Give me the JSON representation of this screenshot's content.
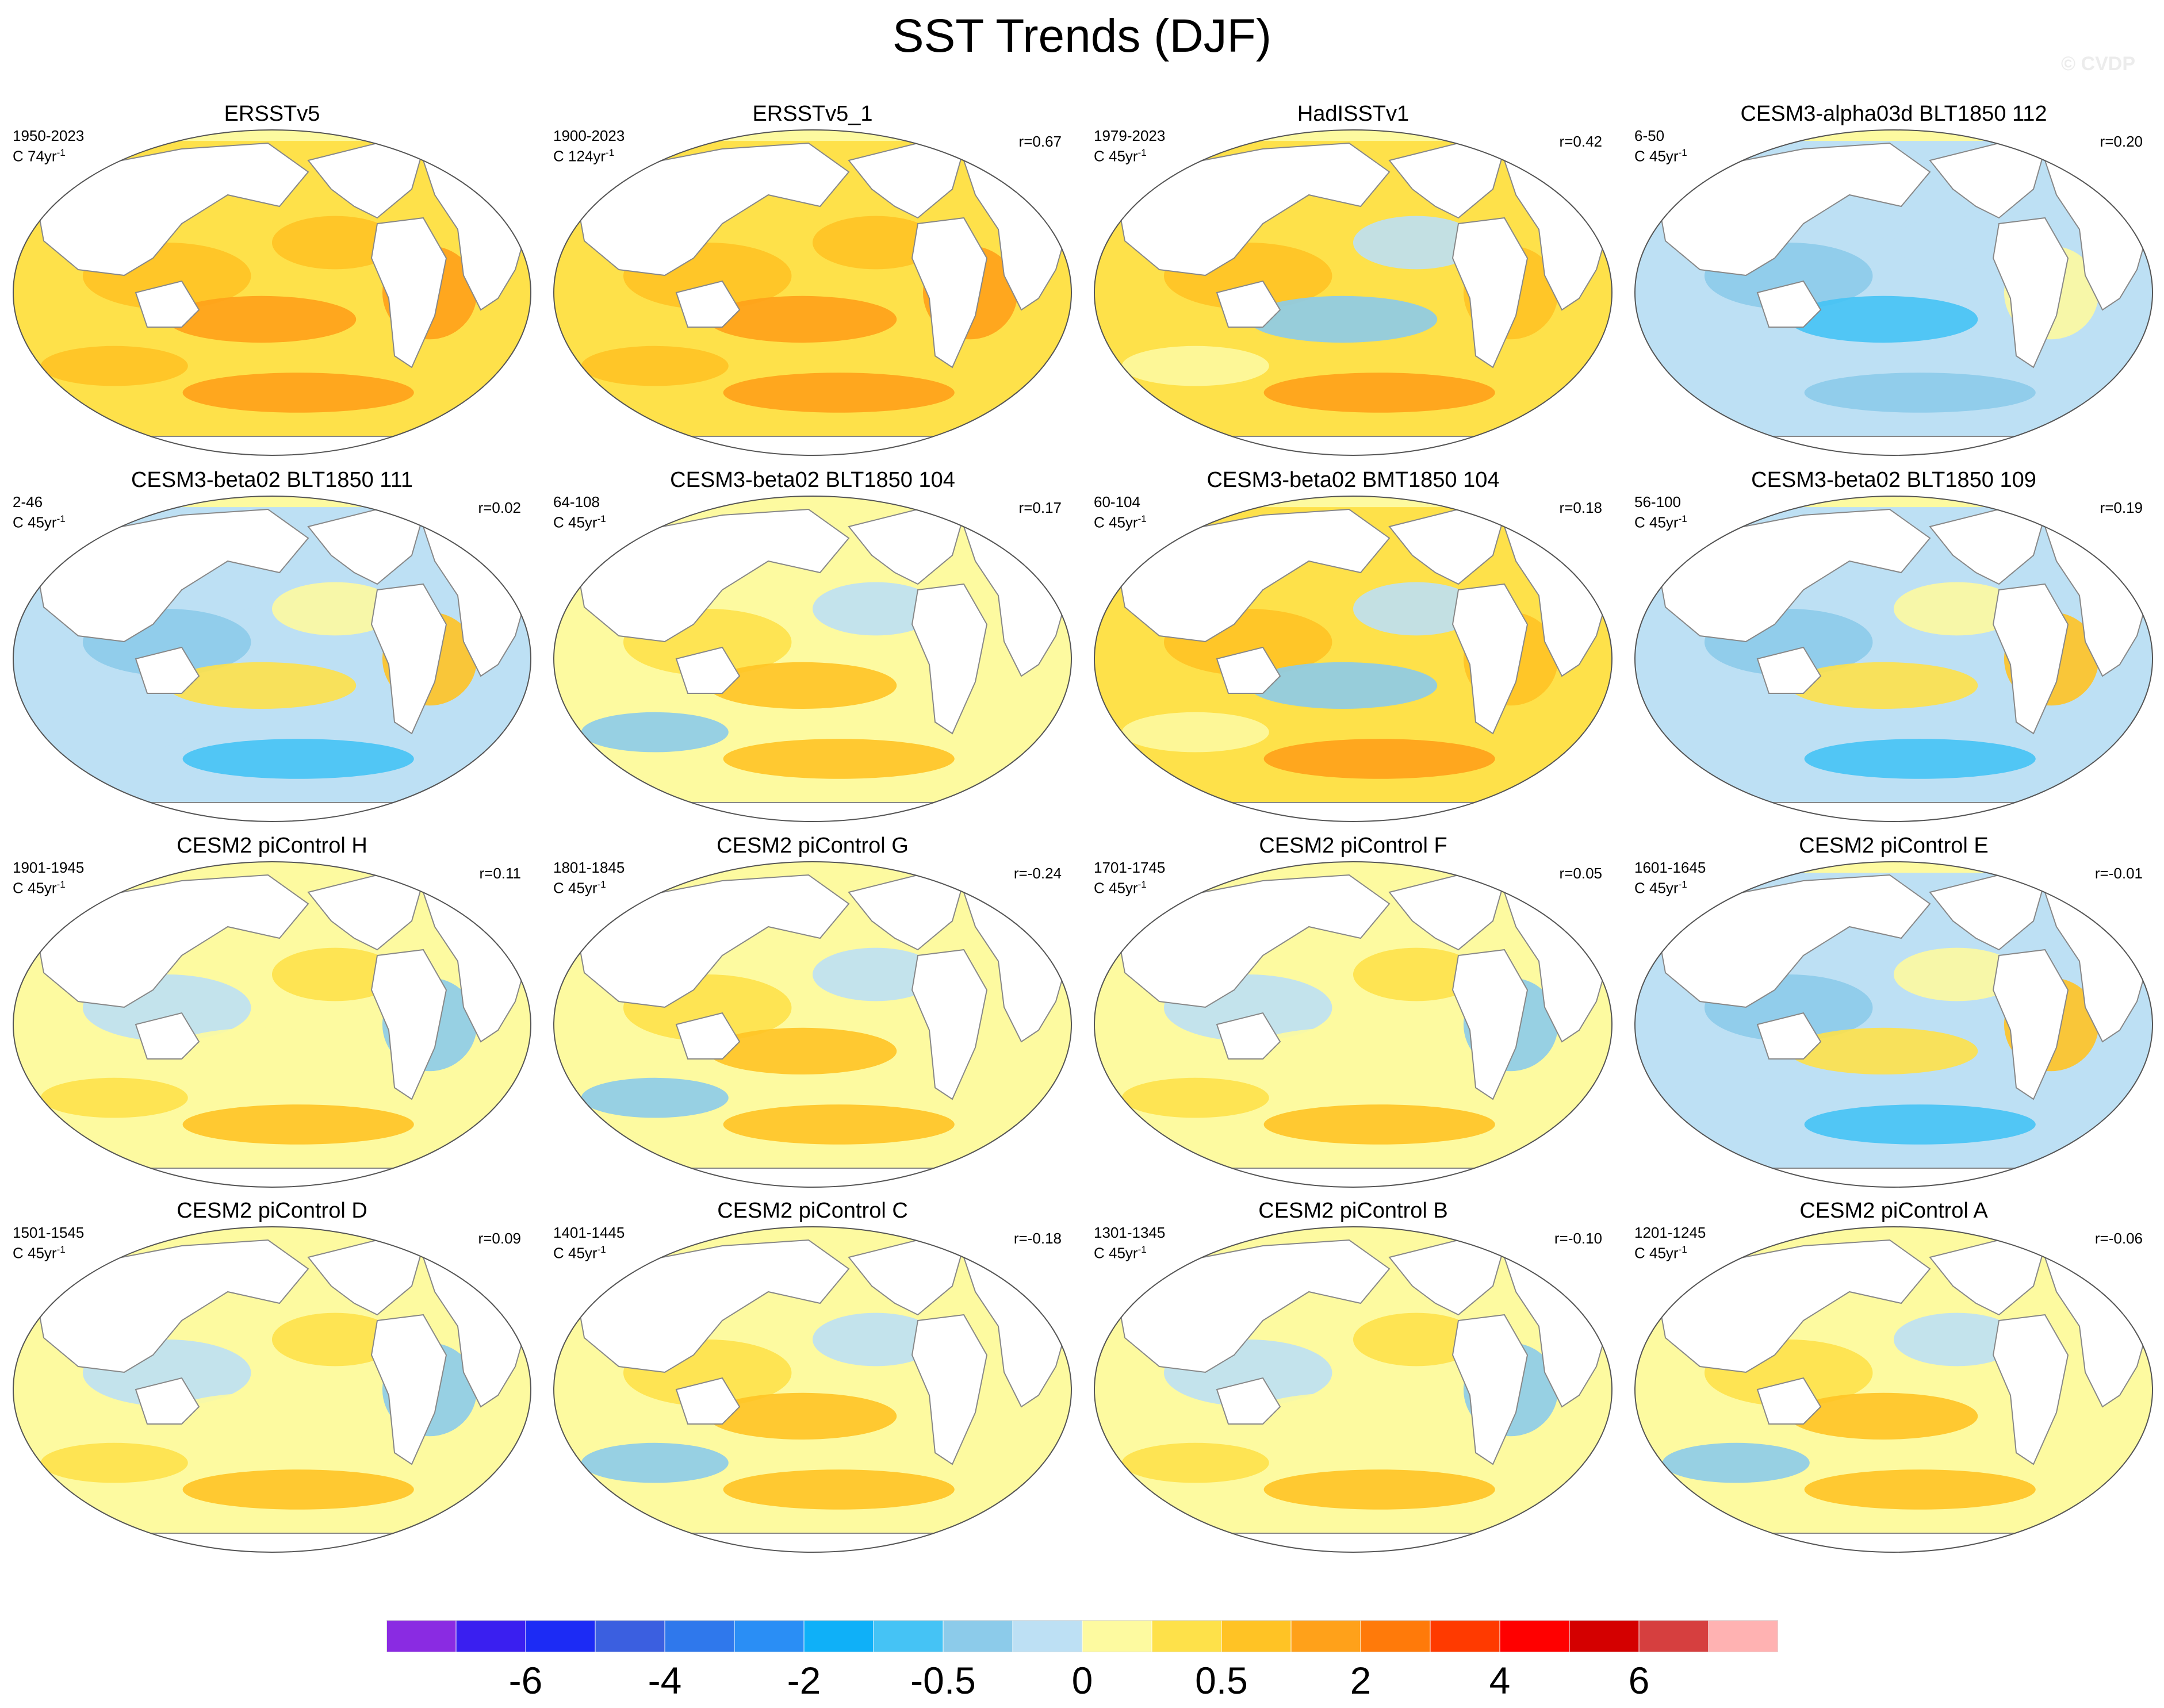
{
  "title": "SST Trends (DJF)",
  "watermark": "© CVDP",
  "panels": [
    {
      "title": "ERSSTv5",
      "years": "1950-2023",
      "units": "C 74yr",
      "units_exp": "-1",
      "corr": "",
      "pattern": "warm-strong"
    },
    {
      "title": "ERSSTv5_1",
      "years": "1900-2023",
      "units": "C 124yr",
      "units_exp": "-1",
      "corr": "r=0.67",
      "pattern": "warm-strong"
    },
    {
      "title": "HadISSTv1",
      "years": "1979-2023",
      "units": "C 45yr",
      "units_exp": "-1",
      "corr": "r=0.42",
      "pattern": "warm-lanina"
    },
    {
      "title": "CESM3-alpha03d BLT1850 112",
      "years": "6-50",
      "units": "C 45yr",
      "units_exp": "-1",
      "corr": "r=0.20",
      "pattern": "cool"
    },
    {
      "title": "CESM3-beta02 BLT1850 111",
      "years": "2-46",
      "units": "C 45yr",
      "units_exp": "-1",
      "corr": "r=0.02",
      "pattern": "mixed-cool"
    },
    {
      "title": "CESM3-beta02 BLT1850 104",
      "years": "64-108",
      "units": "C 45yr",
      "units_exp": "-1",
      "corr": "r=0.17",
      "pattern": "mixed-warm"
    },
    {
      "title": "CESM3-beta02 BMT1850 104",
      "years": "60-104",
      "units": "C 45yr",
      "units_exp": "-1",
      "corr": "r=0.18",
      "pattern": "warm-lanina"
    },
    {
      "title": "CESM3-beta02 BLT1850 109",
      "years": "56-100",
      "units": "C 45yr",
      "units_exp": "-1",
      "corr": "r=0.19",
      "pattern": "mixed-cool"
    },
    {
      "title": "CESM2 piControl H",
      "years": "1901-1945",
      "units": "C 45yr",
      "units_exp": "-1",
      "corr": "r=0.11",
      "pattern": "mixed"
    },
    {
      "title": "CESM2 piControl G",
      "years": "1801-1845",
      "units": "C 45yr",
      "units_exp": "-1",
      "corr": "r=-0.24",
      "pattern": "mixed-warm"
    },
    {
      "title": "CESM2 piControl F",
      "years": "1701-1745",
      "units": "C 45yr",
      "units_exp": "-1",
      "corr": "r=0.05",
      "pattern": "mixed"
    },
    {
      "title": "CESM2 piControl E",
      "years": "1601-1645",
      "units": "C 45yr",
      "units_exp": "-1",
      "corr": "r=-0.01",
      "pattern": "mixed-cool"
    },
    {
      "title": "CESM2 piControl D",
      "years": "1501-1545",
      "units": "C 45yr",
      "units_exp": "-1",
      "corr": "r=0.09",
      "pattern": "mixed"
    },
    {
      "title": "CESM2 piControl C",
      "years": "1401-1445",
      "units": "C 45yr",
      "units_exp": "-1",
      "corr": "r=-0.18",
      "pattern": "mixed-warm"
    },
    {
      "title": "CESM2 piControl B",
      "years": "1301-1345",
      "units": "C 45yr",
      "units_exp": "-1",
      "corr": "r=-0.10",
      "pattern": "mixed"
    },
    {
      "title": "CESM2 piControl A",
      "years": "1201-1245",
      "units": "C 45yr",
      "units_exp": "-1",
      "corr": "r=-0.06",
      "pattern": "mixed-warm"
    }
  ],
  "colorbar": {
    "colors": [
      "#8a2be2",
      "#3a1ff0",
      "#1c2bf5",
      "#3b5fe0",
      "#2f78ec",
      "#2a8ef5",
      "#0fb0f8",
      "#45c3f5",
      "#8ccbea",
      "#bde0f4",
      "#fdfaa0",
      "#fee14a",
      "#ffc325",
      "#ffa11a",
      "#ff7a0a",
      "#ff3a00",
      "#ff0000",
      "#d40000",
      "#d63f3f",
      "#ffb2b2"
    ],
    "tick_labels": [
      "-6",
      "-4",
      "-2",
      "-0.5",
      "0",
      "0.5",
      "2",
      "4",
      "6"
    ],
    "tick_boundaries": [
      2,
      4,
      6,
      8,
      10,
      12,
      14,
      16,
      18
    ]
  }
}
